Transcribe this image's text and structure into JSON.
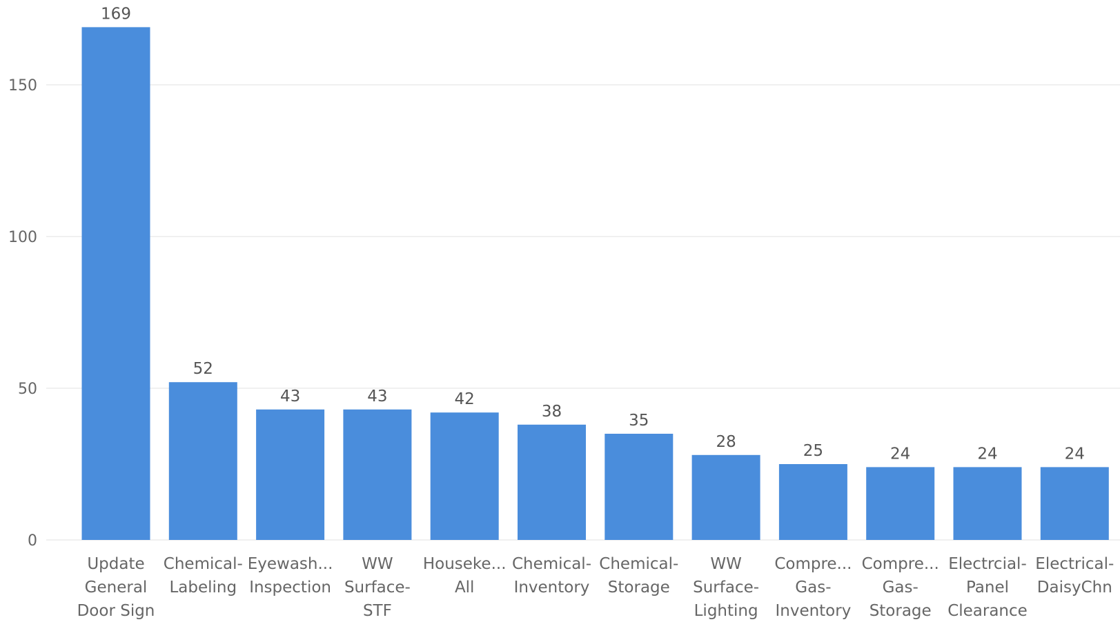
{
  "chart_data": {
    "type": "bar",
    "title": "",
    "xlabel": "",
    "ylabel": "",
    "categories": [
      [
        "Update",
        "General",
        "Door Sign"
      ],
      [
        "Chemical-",
        "Labeling"
      ],
      [
        "Eyewash...",
        "Inspection"
      ],
      [
        "WW",
        "Surface-",
        "STF"
      ],
      [
        "Houseke...",
        "All"
      ],
      [
        "Chemical-",
        "Inventory"
      ],
      [
        "Chemical-",
        "Storage"
      ],
      [
        "WW",
        "Surface-",
        "Lighting"
      ],
      [
        "Compre...",
        "Gas-",
        "Inventory"
      ],
      [
        "Compre...",
        "Gas-",
        "Storage"
      ],
      [
        "Electrcial-",
        "Panel",
        "Clearance"
      ],
      [
        "Electrical-",
        "DaisyChn"
      ]
    ],
    "values": [
      169,
      52,
      43,
      43,
      42,
      38,
      35,
      28,
      25,
      24,
      24,
      24
    ],
    "ylim": [
      0,
      175
    ],
    "yticks": [
      0,
      50,
      100,
      150
    ],
    "grid": true,
    "bar_color": "#4a8ddc"
  }
}
